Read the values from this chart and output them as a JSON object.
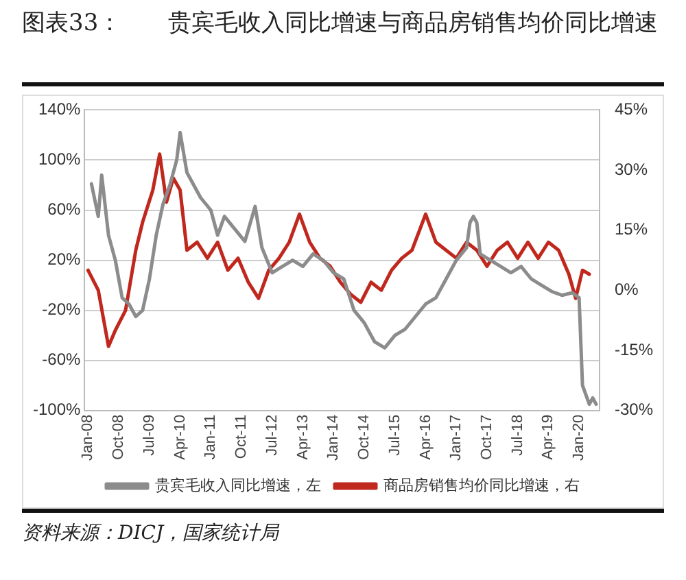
{
  "chart_data": {
    "type": "line",
    "title": "图表33：　　贵宾毛收入同比增速与商品房销售均价同比增速",
    "xlim": [
      "2007-12",
      "2020-07"
    ],
    "xticks": [
      {
        "value": "2008-01",
        "label": "Jan-08"
      },
      {
        "value": "2008-10",
        "label": "Oct-08"
      },
      {
        "value": "2009-07",
        "label": "Jul-09"
      },
      {
        "value": "2010-04",
        "label": "Apr-10"
      },
      {
        "value": "2011-01",
        "label": "Jan-11"
      },
      {
        "value": "2011-10",
        "label": "Oct-11"
      },
      {
        "value": "2012-07",
        "label": "Jul-12"
      },
      {
        "value": "2013-04",
        "label": "Apr-13"
      },
      {
        "value": "2014-01",
        "label": "Jan-14"
      },
      {
        "value": "2014-10",
        "label": "Oct-14"
      },
      {
        "value": "2015-07",
        "label": "Jul-15"
      },
      {
        "value": "2016-04",
        "label": "Apr-16"
      },
      {
        "value": "2017-01",
        "label": "Jan-17"
      },
      {
        "value": "2017-10",
        "label": "Oct-17"
      },
      {
        "value": "2018-07",
        "label": "Jul-18"
      },
      {
        "value": "2019-04",
        "label": "Apr-19"
      },
      {
        "value": "2020-01",
        "label": "Jan-20"
      }
    ],
    "ylim": [
      -100,
      140
    ],
    "yticks": [
      {
        "value": -100,
        "label": "-100%"
      },
      {
        "value": -60,
        "label": "-60%"
      },
      {
        "value": -20,
        "label": "-20%"
      },
      {
        "value": 20,
        "label": "20%"
      },
      {
        "value": 60,
        "label": "60%"
      },
      {
        "value": 100,
        "label": "100%"
      },
      {
        "value": 140,
        "label": "140%"
      }
    ],
    "y2lim": [
      -30,
      45
    ],
    "y2ticks": [
      {
        "value": -30,
        "label": "-30%"
      },
      {
        "value": -15,
        "label": "-15%"
      },
      {
        "value": 0,
        "label": "0%"
      },
      {
        "value": 15,
        "label": "15%"
      },
      {
        "value": 30,
        "label": "30%"
      },
      {
        "value": 45,
        "label": "45%"
      }
    ],
    "series": [
      {
        "name": "贵宾毛收入同比增速，左",
        "color": "#8c8c8c",
        "x": [
          "2008-02",
          "2008-04",
          "2008-05",
          "2008-07",
          "2008-09",
          "2008-11",
          "2009-01",
          "2009-03",
          "2009-05",
          "2009-07",
          "2009-09",
          "2009-11",
          "2010-01",
          "2010-03",
          "2010-04",
          "2010-06",
          "2010-08",
          "2010-10",
          "2011-01",
          "2011-03",
          "2011-05",
          "2011-08",
          "2011-11",
          "2012-02",
          "2012-04",
          "2012-07",
          "2012-10",
          "2013-01",
          "2013-04",
          "2013-07",
          "2013-10",
          "2014-01",
          "2014-04",
          "2014-07",
          "2014-10",
          "2015-01",
          "2015-04",
          "2015-07",
          "2015-10",
          "2016-01",
          "2016-04",
          "2016-07",
          "2016-10",
          "2017-01",
          "2017-04",
          "2017-05",
          "2017-06",
          "2017-07",
          "2017-08",
          "2017-11",
          "2018-02",
          "2018-05",
          "2018-08",
          "2018-11",
          "2019-02",
          "2019-05",
          "2019-08",
          "2019-11",
          "2020-01",
          "2020-02",
          "2020-04",
          "2020-05",
          "2020-06"
        ],
        "values": [
          81,
          55,
          88,
          40,
          20,
          -10,
          -15,
          -25,
          -20,
          5,
          40,
          65,
          80,
          100,
          122,
          90,
          80,
          70,
          60,
          40,
          55,
          45,
          35,
          63,
          30,
          10,
          15,
          20,
          15,
          25,
          20,
          10,
          5,
          -20,
          -30,
          -45,
          -50,
          -40,
          -35,
          -25,
          -15,
          -10,
          5,
          20,
          30,
          50,
          55,
          50,
          25,
          20,
          15,
          10,
          15,
          5,
          0,
          -5,
          -8,
          -6,
          -10,
          -80,
          -95,
          -90,
          -95
        ]
      },
      {
        "name": "商品房销售均价同比增速，右",
        "color": "#c0281e",
        "axis": "y2",
        "x": [
          "2008-01",
          "2008-04",
          "2008-07",
          "2008-09",
          "2008-12",
          "2009-03",
          "2009-05",
          "2009-08",
          "2009-10",
          "2009-12",
          "2010-02",
          "2010-04",
          "2010-06",
          "2010-09",
          "2010-12",
          "2011-03",
          "2011-06",
          "2011-09",
          "2011-12",
          "2012-03",
          "2012-06",
          "2012-09",
          "2012-12",
          "2013-03",
          "2013-06",
          "2013-09",
          "2013-12",
          "2014-03",
          "2014-06",
          "2014-09",
          "2014-12",
          "2015-03",
          "2015-06",
          "2015-09",
          "2015-12",
          "2016-04",
          "2016-07",
          "2016-10",
          "2017-01",
          "2017-04",
          "2017-07",
          "2017-10",
          "2018-01",
          "2018-04",
          "2018-07",
          "2018-10",
          "2019-01",
          "2019-04",
          "2019-07",
          "2019-10",
          "2019-12",
          "2020-02",
          "2020-04"
        ],
        "values": [
          5,
          0,
          -14,
          -10,
          -5,
          10,
          17,
          25,
          34,
          22,
          28,
          25,
          10,
          12,
          8,
          12,
          5,
          8,
          2,
          -2,
          5,
          8,
          12,
          19,
          12,
          8,
          6,
          2,
          -1,
          -3,
          2,
          0,
          5,
          8,
          10,
          19,
          12,
          10,
          8,
          12,
          10,
          6,
          10,
          12,
          8,
          12,
          8,
          12,
          10,
          4,
          -2,
          5,
          4
        ]
      }
    ],
    "grid": "y",
    "legend": "bottom",
    "marker": "none",
    "line_style": "solid",
    "annotations": [
      "资料来源：DICJ，国家统计局"
    ]
  }
}
